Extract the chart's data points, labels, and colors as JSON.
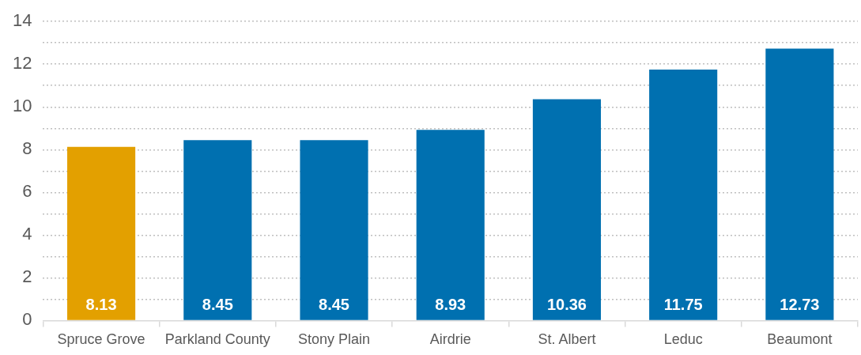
{
  "chart_data": {
    "type": "bar",
    "categories": [
      "Spruce Grove",
      "Parkland County",
      "Stony Plain",
      "Airdrie",
      "St. Albert",
      "Leduc",
      "Beaumont"
    ],
    "values": [
      8.13,
      8.45,
      8.45,
      8.93,
      10.36,
      11.75,
      12.73
    ],
    "colors": [
      "#e3a000",
      "#0070b0",
      "#0070b0",
      "#0070b0",
      "#0070b0",
      "#0070b0",
      "#0070b0"
    ],
    "ylim": [
      0,
      14
    ],
    "yticks": [
      0,
      {
        "value": 1,
        "label": null
      },
      2,
      {
        "value": 3,
        "label": null
      },
      4,
      {
        "value": 5,
        "label": null
      },
      6,
      {
        "value": 7,
        "label": null
      },
      8,
      {
        "value": 9,
        "label": null
      },
      10,
      {
        "value": 11,
        "label": null
      },
      12,
      {
        "value": 13,
        "label": null
      },
      14
    ],
    "grid": "y",
    "data_labels": true,
    "legend": false
  }
}
